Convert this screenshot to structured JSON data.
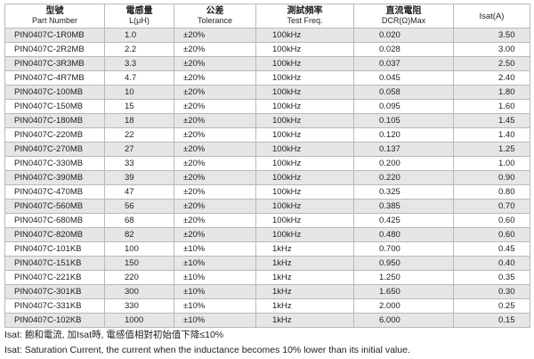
{
  "header": {
    "col1_cn": "型號",
    "col1_en": "Part Number",
    "col2_cn": "電感量",
    "col2_en": "L(μH)",
    "col3_cn": "公差",
    "col3_en": "Tolerance",
    "col4_cn": "測試頻率",
    "col4_en": "Test Freq.",
    "col5_cn": "直流電阻",
    "col5_en": "DCR(Ω)Max",
    "col6": "Isat(A)"
  },
  "rows": [
    {
      "pn": "PIN0407C-1R0MB",
      "l": "1.0",
      "tol": "±20%",
      "freq": "100kHz",
      "dcr": "0.020",
      "isat": "3.50"
    },
    {
      "pn": "PIN0407C-2R2MB",
      "l": "2.2",
      "tol": "±20%",
      "freq": "100kHz",
      "dcr": "0.028",
      "isat": "3.00"
    },
    {
      "pn": "PIN0407C-3R3MB",
      "l": "3.3",
      "tol": "±20%",
      "freq": "100kHz",
      "dcr": "0.037",
      "isat": "2.50"
    },
    {
      "pn": "PIN0407C-4R7MB",
      "l": "4.7",
      "tol": "±20%",
      "freq": "100kHz",
      "dcr": "0.045",
      "isat": "2.40"
    },
    {
      "pn": "PIN0407C-100MB",
      "l": "10",
      "tol": "±20%",
      "freq": "100kHz",
      "dcr": "0.058",
      "isat": "1.80"
    },
    {
      "pn": "PIN0407C-150MB",
      "l": "15",
      "tol": "±20%",
      "freq": "100kHz",
      "dcr": "0.095",
      "isat": "1.60"
    },
    {
      "pn": "PIN0407C-180MB",
      "l": "18",
      "tol": "±20%",
      "freq": "100kHz",
      "dcr": "0.105",
      "isat": "1.45"
    },
    {
      "pn": "PIN0407C-220MB",
      "l": "22",
      "tol": "±20%",
      "freq": "100kHz",
      "dcr": "0.120",
      "isat": "1.40"
    },
    {
      "pn": "PIN0407C-270MB",
      "l": "27",
      "tol": "±20%",
      "freq": "100kHz",
      "dcr": "0.137",
      "isat": "1.25"
    },
    {
      "pn": "PIN0407C-330MB",
      "l": "33",
      "tol": "±20%",
      "freq": "100kHz",
      "dcr": "0.200",
      "isat": "1.00"
    },
    {
      "pn": "PIN0407C-390MB",
      "l": "39",
      "tol": "±20%",
      "freq": "100kHz",
      "dcr": "0.220",
      "isat": "0.90"
    },
    {
      "pn": "PIN0407C-470MB",
      "l": "47",
      "tol": "±20%",
      "freq": "100kHz",
      "dcr": "0.325",
      "isat": "0.80"
    },
    {
      "pn": "PIN0407C-560MB",
      "l": "56",
      "tol": "±20%",
      "freq": "100kHz",
      "dcr": "0.385",
      "isat": "0.70"
    },
    {
      "pn": "PIN0407C-680MB",
      "l": "68",
      "tol": "±20%",
      "freq": "100kHz",
      "dcr": "0.425",
      "isat": "0.60"
    },
    {
      "pn": "PIN0407C-820MB",
      "l": "82",
      "tol": "±20%",
      "freq": "100kHz",
      "dcr": "0.480",
      "isat": "0.60"
    },
    {
      "pn": "PIN0407C-101KB",
      "l": "100",
      "tol": "±10%",
      "freq": "1kHz",
      "dcr": "0.700",
      "isat": "0.45"
    },
    {
      "pn": "PIN0407C-151KB",
      "l": "150",
      "tol": "±10%",
      "freq": "1kHz",
      "dcr": "0.950",
      "isat": "0.40"
    },
    {
      "pn": "PIN0407C-221KB",
      "l": "220",
      "tol": "±10%",
      "freq": "1kHz",
      "dcr": "1.250",
      "isat": "0.35"
    },
    {
      "pn": "PIN0407C-301KB",
      "l": "300",
      "tol": "±10%",
      "freq": "1kHz",
      "dcr": "1.650",
      "isat": "0.30"
    },
    {
      "pn": "PIN0407C-331KB",
      "l": "330",
      "tol": "±10%",
      "freq": "1kHz",
      "dcr": "2.000",
      "isat": "0.25"
    },
    {
      "pn": "PIN0407C-102KB",
      "l": "1000",
      "tol": "±10%",
      "freq": "1kHz",
      "dcr": "6.000",
      "isat": "0.15"
    }
  ],
  "notes": {
    "cn": "Isat: 飽和電流, 加Isat時, 電感值相對初始值下降≤10%",
    "en": "Isat: Saturation Current, the current when the inductance becomes 10% lower than its initial value."
  }
}
